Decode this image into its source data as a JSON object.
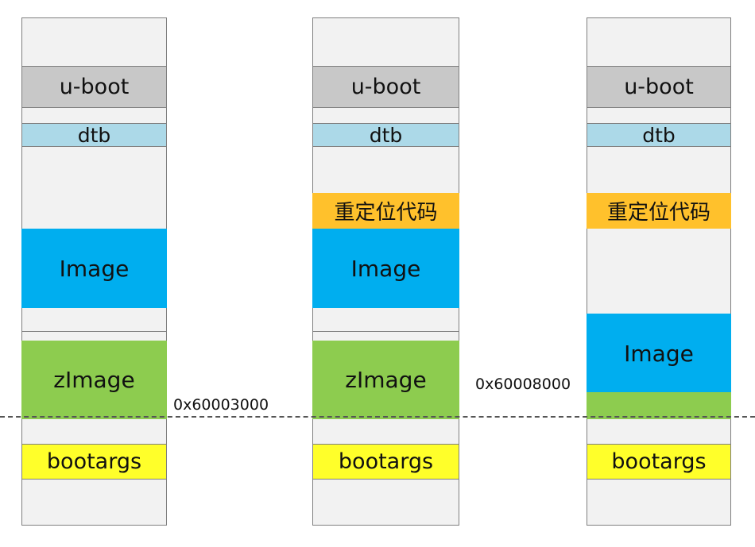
{
  "columns": [
    {
      "uboot": "u-boot",
      "dtb": "dtb",
      "image": "Image",
      "zimage": "zImage",
      "bootargs": "bootargs"
    },
    {
      "uboot": "u-boot",
      "dtb": "dtb",
      "reloc": "重定位代码",
      "image": "Image",
      "zimage": "zImage",
      "bootargs": "bootargs"
    },
    {
      "uboot": "u-boot",
      "dtb": "dtb",
      "reloc": "重定位代码",
      "image": "Image",
      "bootargs": "bootargs"
    }
  ],
  "addresses": {
    "a1": "0x60003000",
    "a2": "0x60008000"
  },
  "colors": {
    "uboot": "#c8c8c8",
    "dtb": "#acd9e8",
    "reloc": "#ffc12c",
    "image": "#00aeef",
    "zimage": "#8dcc4f",
    "bootargs": "#ffff2a",
    "column": "#f2f2f2"
  }
}
